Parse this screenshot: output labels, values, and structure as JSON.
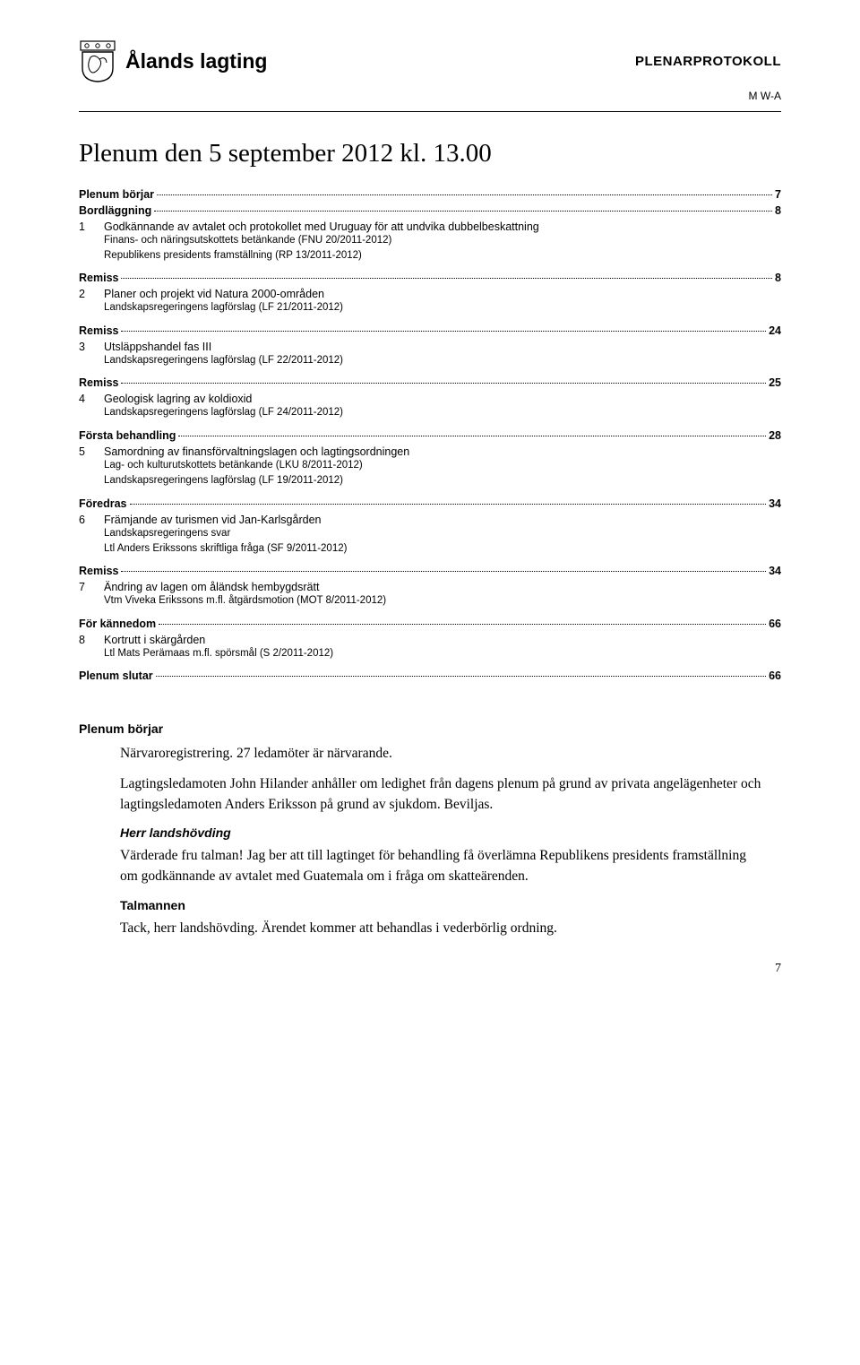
{
  "header": {
    "site": "Ålands lagting",
    "doctype": "PLENARPROTOKOLL",
    "rightcode": "M W-A"
  },
  "title": "Plenum den 5 september 2012 kl. 13.00",
  "toc": {
    "groups": [
      {
        "heading": "Plenum börjar",
        "page": "7",
        "items": []
      },
      {
        "heading": "Bordläggning",
        "page": "8",
        "items": [
          {
            "num": "1",
            "title": "Godkännande av avtalet och protokollet med Uruguay för att undvika dubbelbeskattning",
            "subs": [
              "Finans- och näringsutskottets betänkande (FNU 20/2011-2012)",
              "Republikens presidents framställning (RP 13/2011-2012)"
            ]
          }
        ]
      },
      {
        "heading": "Remiss",
        "page": "8",
        "items": [
          {
            "num": "2",
            "title": "Planer och projekt vid Natura 2000-områden",
            "subs": [
              "Landskapsregeringens lagförslag (LF 21/2011-2012)"
            ]
          }
        ]
      },
      {
        "heading": "Remiss",
        "page": "24",
        "items": [
          {
            "num": "3",
            "title": "Utsläppshandel fas III",
            "subs": [
              "Landskapsregeringens lagförslag (LF 22/2011-2012)"
            ]
          }
        ]
      },
      {
        "heading": "Remiss",
        "page": "25",
        "items": [
          {
            "num": "4",
            "title": "Geologisk lagring av koldioxid",
            "subs": [
              "Landskapsregeringens lagförslag (LF 24/2011-2012)"
            ]
          }
        ]
      },
      {
        "heading": "Första behandling",
        "page": "28",
        "items": [
          {
            "num": "5",
            "title": "Samordning av finansförvaltningslagen och lagtingsordningen",
            "subs": [
              "Lag- och kulturutskottets betänkande (LKU 8/2011-2012)",
              "Landskapsregeringens lagförslag (LF 19/2011-2012)"
            ]
          }
        ]
      },
      {
        "heading": "Föredras",
        "page": "34",
        "items": [
          {
            "num": "6",
            "title": "Främjande av turismen vid Jan-Karlsgården",
            "subs": [
              "Landskapsregeringens svar",
              "Ltl Anders Erikssons skriftliga fråga (SF 9/2011-2012)"
            ]
          }
        ]
      },
      {
        "heading": "Remiss",
        "page": "34",
        "items": [
          {
            "num": "7",
            "title": "Ändring av lagen om åländsk hembygdsrätt",
            "subs": [
              "Vtm Viveka Erikssons m.fl. åtgärdsmotion (MOT 8/2011-2012)"
            ]
          }
        ]
      },
      {
        "heading": "För kännedom",
        "page": "66",
        "items": [
          {
            "num": "8",
            "title": "Kortrutt i skärgården",
            "subs": [
              "Ltl Mats Perämaas m.fl. spörsmål (S 2/2011-2012)"
            ]
          }
        ]
      },
      {
        "heading": "Plenum slutar",
        "page": "66",
        "items": []
      }
    ]
  },
  "body": {
    "section_heading": "Plenum börjar",
    "para1": "Närvaroregistrering. 27 ledamöter är närvarande.",
    "para2": "Lagtingsledamoten John Hilander anhåller om ledighet från dagens plenum på grund av privata angelägenheter och lagtingsledamoten Anders Eriksson på grund av sjukdom. Beviljas.",
    "speaker1": "Herr landshövding",
    "para3": "Värderade fru talman! Jag ber att till lagtinget för behandling få överlämna Republikens presidents framställning om godkännande av avtalet med Guatemala om i fråga om skatteärenden.",
    "speaker2": "Talmannen",
    "para4": "Tack, herr landshövding. Ärendet kommer att behandlas i vederbörlig ordning."
  },
  "pagenum": "7"
}
